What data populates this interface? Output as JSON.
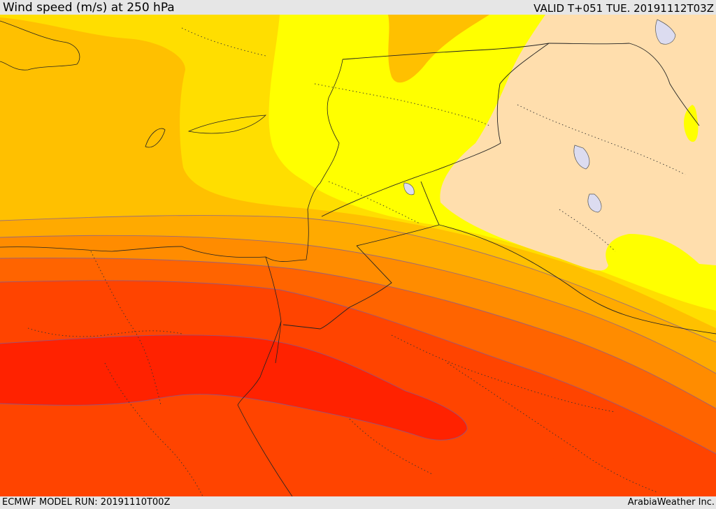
{
  "header": {
    "title": "Wind speed (m/s) at 250 hPa",
    "valid_time": "VALID T+051 TUE. 20191112T03Z"
  },
  "footer": {
    "model_run": "ECMWF MODEL RUN: 20191110T00Z",
    "credit": "ArabiaWeather Inc."
  },
  "map": {
    "field": "wind speed",
    "units": "m/s",
    "pressure_level": "250 hPa",
    "palette": [
      "#ffdead",
      "#ffff00",
      "#ffde00",
      "#ffc000",
      "#ffaa00",
      "#ff8c00",
      "#ff6400",
      "#ff4400",
      "#ff2200"
    ]
  }
}
